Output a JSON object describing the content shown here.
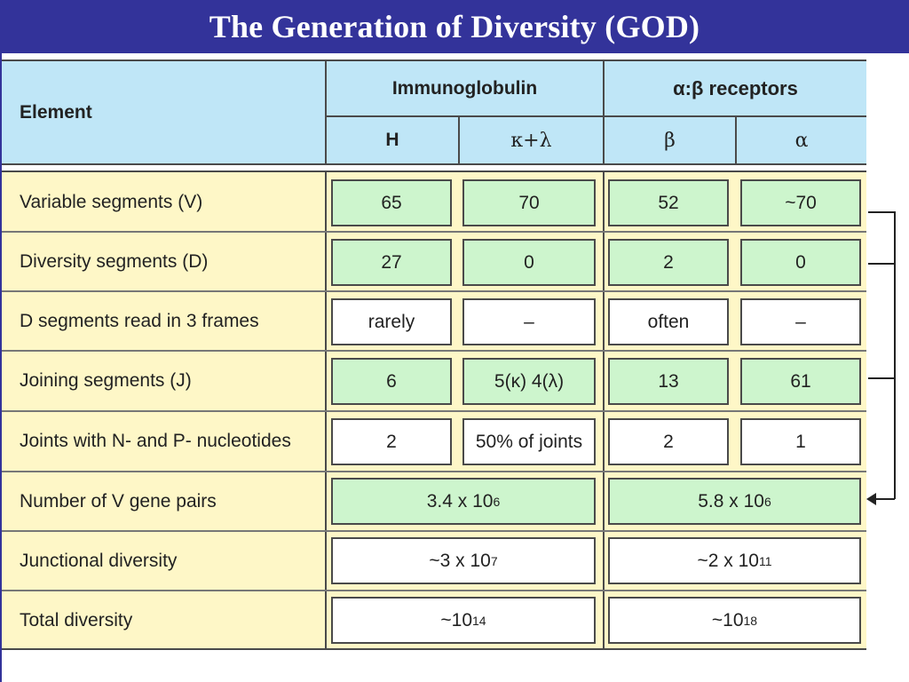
{
  "title": "The Generation of Diversity (GOD)",
  "header": {
    "element": "Element",
    "immunoglobulin": "Immunoglobulin",
    "receptors": "α:β receptors",
    "h": "H",
    "kl": "κ+λ",
    "beta": "β",
    "alpha": "α"
  },
  "rows": [
    {
      "label": "Variable segments (V)",
      "h": "65",
      "kl": "70",
      "beta": "52",
      "alpha": "~70"
    },
    {
      "label": "Diversity segments (D)",
      "h": "27",
      "kl": "0",
      "beta": "2",
      "alpha": "0"
    },
    {
      "label": "D segments read in 3 frames",
      "h": "rarely",
      "kl": "–",
      "beta": "often",
      "alpha": "–"
    },
    {
      "label": "Joining segments (J)",
      "h": "6",
      "kl": "5(κ) 4(λ)",
      "beta": "13",
      "alpha": "61"
    },
    {
      "label": "Joints with N- and P- nucleotides",
      "h": "2",
      "kl": "50% of joints",
      "beta": "2",
      "alpha": "1"
    }
  ],
  "merged_rows": [
    {
      "label": "Number of V gene pairs",
      "ig": {
        "base": "3.4 x 10",
        "exp": "6"
      },
      "tcr": {
        "base": "5.8 x 10",
        "exp": "6"
      }
    },
    {
      "label": "Junctional diversity",
      "ig": {
        "base": "~3 x 10",
        "exp": "7"
      },
      "tcr": {
        "base": "~2 x 10",
        "exp": "11"
      }
    },
    {
      "label": "Total diversity",
      "ig": {
        "base": "~10",
        "exp": "14"
      },
      "tcr": {
        "base": "~10",
        "exp": "18"
      }
    }
  ],
  "colors": {
    "title_bg": "#33339a",
    "header_bg": "#bfe6f7",
    "body_bg": "#fef7c7",
    "green_cell": "#cdf5cd",
    "white_cell": "#ffffff"
  },
  "icons": [
    "bracket-arrow-icon"
  ]
}
